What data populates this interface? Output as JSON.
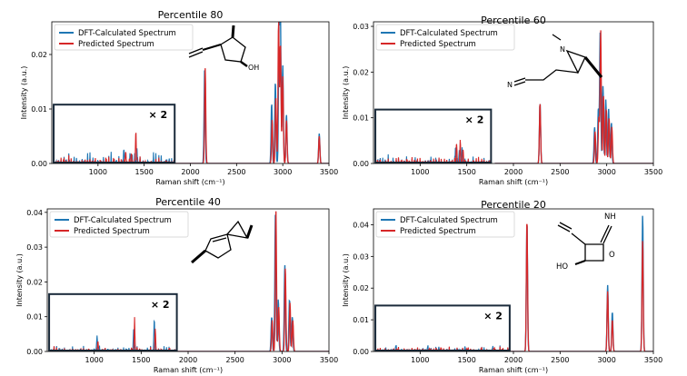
{
  "figure": {
    "legend": {
      "dft_label": "DFT-Calculated Spectrum",
      "pred_label": "Predicted Spectrum"
    },
    "colors": {
      "dft": "#1f77b4",
      "predicted": "#d62728",
      "inset_box": "#1a2a3a"
    },
    "xlabel": "Raman shift (cm⁻¹)",
    "ylabel": "Intensity (a.u.)",
    "inset_label": "× 2"
  },
  "chart_data": [
    {
      "type": "line",
      "title": "Percentile 80",
      "xlabel": "Raman shift (cm⁻¹)",
      "ylabel": "Intensity (a.u.)",
      "xlim": [
        500,
        3500
      ],
      "ylim": [
        0,
        0.026
      ],
      "xticks": [
        1000,
        1500,
        2000,
        2500,
        3000,
        3500
      ],
      "yticks": [
        0.0,
        0.01,
        0.02
      ],
      "ytick_labels": [
        "0.00",
        "0.01",
        "0.02"
      ],
      "inset": {
        "x_range": [
          520,
          1830
        ],
        "height": 0.0108,
        "label": "× 2",
        "scale": 2
      },
      "molecule": "cyclopentanol with ethynyl and methyl substituents",
      "mol_labels": [
        "OH"
      ],
      "series": [
        {
          "name": "DFT-Calculated Spectrum",
          "peaks": [
            [
              2155,
              0.0175
            ],
            [
              2880,
              0.011
            ],
            [
              2920,
              0.015
            ],
            [
              2960,
              0.025
            ],
            [
              2975,
              0.0255
            ],
            [
              3000,
              0.018
            ],
            [
              3040,
              0.009
            ],
            [
              3395,
              0.0055
            ]
          ]
        },
        {
          "name": "Predicted Spectrum",
          "peaks": [
            [
              2160,
              0.0175
            ],
            [
              2885,
              0.008
            ],
            [
              2925,
              0.012
            ],
            [
              2955,
              0.026
            ],
            [
              2975,
              0.022
            ],
            [
              3000,
              0.016
            ],
            [
              3040,
              0.008
            ],
            [
              3395,
              0.005
            ]
          ]
        }
      ],
      "inset_series": [
        {
          "name": "DFT-Calculated Spectrum",
          "peaks": [
            [
              1280,
              0.0025
            ],
            [
              1350,
              0.0015
            ],
            [
              1420,
              0.0022
            ]
          ]
        },
        {
          "name": "Predicted Spectrum",
          "peaks": [
            [
              1300,
              0.0022
            ],
            [
              1360,
              0.0018
            ],
            [
              1410,
              0.006
            ]
          ]
        }
      ]
    },
    {
      "type": "line",
      "title": "Percentile 60",
      "xlabel": "Raman shift (cm⁻¹)",
      "ylabel": "Intensity (a.u.)",
      "xlim": [
        500,
        3500
      ],
      "ylim": [
        0,
        0.031
      ],
      "xticks": [
        1000,
        1500,
        2000,
        2500,
        3000,
        3500
      ],
      "yticks": [
        0.0,
        0.01,
        0.02,
        0.03
      ],
      "ytick_labels": [
        "0.00",
        "0.01",
        "0.02",
        "0.03"
      ],
      "inset": {
        "x_range": [
          520,
          1760
        ],
        "height": 0.0118,
        "label": "× 2",
        "scale": 2
      },
      "molecule": "methyl aziridine with cyanoethyl chain",
      "mol_labels": [
        "N",
        "N"
      ],
      "series": [
        {
          "name": "DFT-Calculated Spectrum",
          "peaks": [
            [
              2285,
              0.0132
            ],
            [
              2870,
              0.008
            ],
            [
              2910,
              0.012
            ],
            [
              2930,
              0.029
            ],
            [
              2960,
              0.017
            ],
            [
              2990,
              0.014
            ],
            [
              3020,
              0.012
            ],
            [
              3050,
              0.009
            ]
          ]
        },
        {
          "name": "Predicted Spectrum",
          "peaks": [
            [
              2285,
              0.0132
            ],
            [
              2875,
              0.007
            ],
            [
              2915,
              0.01
            ],
            [
              2935,
              0.0292
            ],
            [
              2965,
              0.015
            ],
            [
              2995,
              0.012
            ],
            [
              3025,
              0.01
            ],
            [
              3055,
              0.008
            ]
          ]
        }
      ],
      "inset_series": [
        {
          "name": "DFT-Calculated Spectrum",
          "peaks": [
            [
              1380,
              0.0035
            ],
            [
              1420,
              0.003
            ],
            [
              1450,
              0.0035
            ]
          ]
        },
        {
          "name": "Predicted Spectrum",
          "peaks": [
            [
              1390,
              0.0045
            ],
            [
              1430,
              0.005
            ],
            [
              1460,
              0.003
            ]
          ]
        }
      ]
    },
    {
      "type": "line",
      "title": "Percentile 40",
      "xlabel": "Raman shift (cm⁻¹)",
      "ylabel": "Intensity (a.u.)",
      "xlim": [
        500,
        3500
      ],
      "ylim": [
        0,
        0.041
      ],
      "xticks": [
        1000,
        1500,
        2000,
        2500,
        3000,
        3500
      ],
      "yticks": [
        0.0,
        0.01,
        0.02,
        0.03,
        0.04
      ],
      "ytick_labels": [
        "0.00",
        "0.01",
        "0.02",
        "0.03",
        "0.04"
      ],
      "inset": {
        "x_range": [
          520,
          1880
        ],
        "height": 0.0165,
        "label": "× 2",
        "scale": 2
      },
      "molecule": "spiro bicyclic hydrocarbon with methyl groups",
      "mol_labels": [],
      "series": [
        {
          "name": "DFT-Calculated Spectrum",
          "peaks": [
            [
              2890,
              0.01
            ],
            [
              2930,
              0.04
            ],
            [
              2960,
              0.015
            ],
            [
              3030,
              0.025
            ],
            [
              3080,
              0.015
            ],
            [
              3110,
              0.01
            ]
          ]
        },
        {
          "name": "Predicted Spectrum",
          "peaks": [
            [
              2895,
              0.009
            ],
            [
              2935,
              0.0405
            ],
            [
              2965,
              0.013
            ],
            [
              3035,
              0.024
            ],
            [
              3085,
              0.014
            ],
            [
              3115,
              0.009
            ]
          ]
        }
      ],
      "inset_series": [
        {
          "name": "DFT-Calculated Spectrum",
          "peaks": [
            [
              1030,
              0.0045
            ],
            [
              1420,
              0.0065
            ],
            [
              1640,
              0.0095
            ]
          ]
        },
        {
          "name": "Predicted Spectrum",
          "peaks": [
            [
              1040,
              0.003
            ],
            [
              1430,
              0.0085
            ],
            [
              1650,
              0.0065
            ]
          ]
        }
      ]
    },
    {
      "type": "line",
      "title": "Percentile 20",
      "xlabel": "Raman shift (cm⁻¹)",
      "ylabel": "Intensity (a.u.)",
      "xlim": [
        500,
        3500
      ],
      "ylim": [
        0,
        0.045
      ],
      "xticks": [
        1000,
        1500,
        2000,
        2500,
        3000,
        3500
      ],
      "yticks": [
        0.0,
        0.01,
        0.02,
        0.03,
        0.04
      ],
      "ytick_labels": [
        "0.00",
        "0.01",
        "0.02",
        "0.03",
        "0.04"
      ],
      "inset": {
        "x_range": [
          520,
          1960
        ],
        "height": 0.0145,
        "label": "× 2",
        "scale": 2
      },
      "molecule": "oxetane imine with ethynyl and hydroxyl",
      "mol_labels": [
        "NH",
        "O",
        "HO"
      ],
      "series": [
        {
          "name": "DFT-Calculated Spectrum",
          "peaks": [
            [
              2145,
              0.041
            ],
            [
              3010,
              0.021
            ],
            [
              3060,
              0.0125
            ],
            [
              3385,
              0.043
            ]
          ]
        },
        {
          "name": "Predicted Spectrum",
          "peaks": [
            [
              2145,
              0.0415
            ],
            [
              3010,
              0.019
            ],
            [
              3060,
              0.01
            ],
            [
              3385,
              0.035
            ]
          ]
        }
      ],
      "inset_series": [
        {
          "name": "DFT-Calculated Spectrum",
          "peaks": [
            [
              740,
              0.0018
            ],
            [
              1080,
              0.0012
            ],
            [
              1200,
              0.0012
            ],
            [
              1480,
              0.0012
            ],
            [
              1780,
              0.0015
            ]
          ]
        },
        {
          "name": "Predicted Spectrum",
          "peaks": [
            [
              750,
              0.0009
            ],
            [
              1100,
              0.0009
            ],
            [
              1220,
              0.0009
            ],
            [
              1500,
              0.0009
            ],
            [
              1790,
              0.001
            ]
          ]
        }
      ]
    }
  ]
}
